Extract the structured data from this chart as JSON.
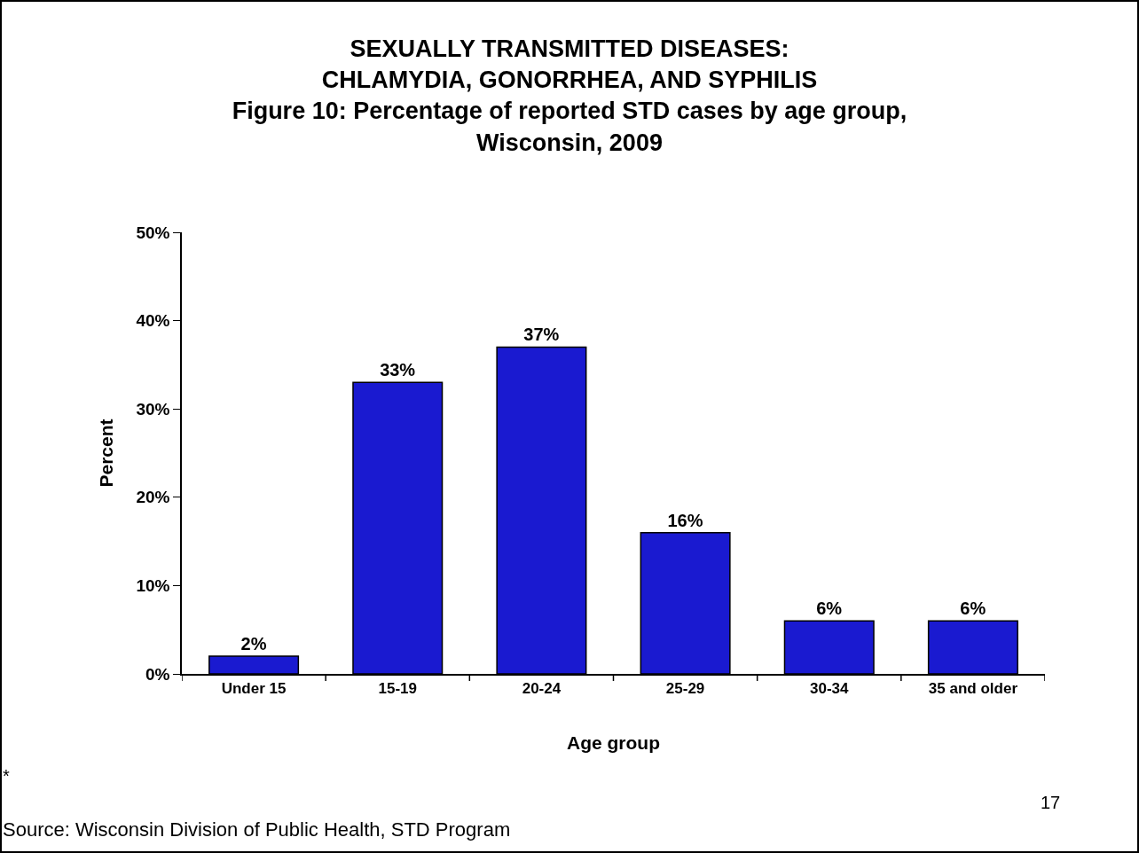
{
  "chart_data": {
    "type": "bar",
    "title": "SEXUALLY TRANSMITTED DISEASES: CHLAMYDIA, GONORRHEA, AND SYPHILIS",
    "subtitle": "Figure 10: Percentage of reported STD cases by age group, Wisconsin, 2009",
    "xlabel": "Age group",
    "ylabel": "Percent",
    "categories": [
      "Under 15",
      "15-19",
      "20-24",
      "25-29",
      "30-34",
      "35 and older"
    ],
    "values": [
      2,
      33,
      37,
      16,
      6,
      6
    ],
    "value_labels": [
      "2%",
      "33%",
      "37%",
      "16%",
      "6%",
      "6%"
    ],
    "color": "#1a1ad0",
    "ylim": [
      0,
      50
    ],
    "yticks": [
      {
        "value": 0,
        "label": "0%"
      },
      {
        "value": 10,
        "label": "10%"
      },
      {
        "value": 20,
        "label": "20%"
      },
      {
        "value": 30,
        "label": "30%"
      },
      {
        "value": 40,
        "label": "40%"
      },
      {
        "value": 50,
        "label": "50%"
      }
    ],
    "grid": false,
    "legend": false,
    "annotations": [
      "*",
      "17",
      "Source: Wisconsin Division of Public Health, STD Program"
    ]
  }
}
